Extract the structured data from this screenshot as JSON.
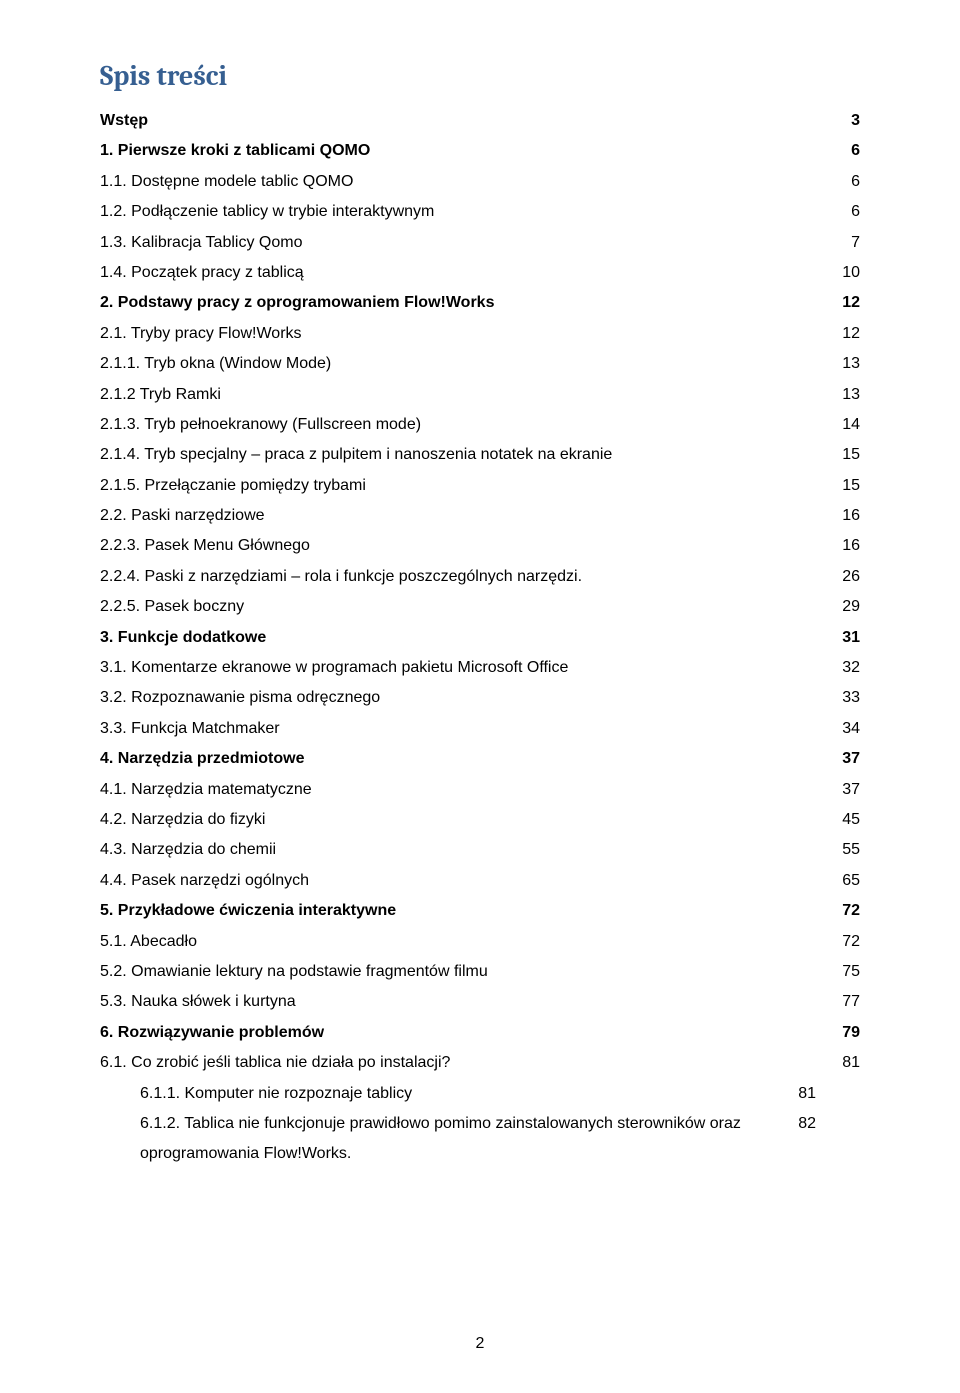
{
  "title": "Spis treści",
  "page_number": "2",
  "colors": {
    "title": "#365f91",
    "text": "#000000",
    "background": "#ffffff"
  },
  "typography": {
    "title_font": "Cambria",
    "body_font": "Arial",
    "title_size_pt": 21,
    "body_size_pt": 12,
    "line_height": 1.9
  },
  "toc": [
    {
      "label": "Wstęp",
      "page": "3",
      "level": "lvl0"
    },
    {
      "label": "1.    Pierwsze kroki z tablicami QOMO",
      "page": "6",
      "level": "lvl1b"
    },
    {
      "label": "1.1.    Dostępne modele tablic QOMO",
      "page": "6",
      "level": "lvl2"
    },
    {
      "label": "1.2.    Podłączenie tablicy w trybie interaktywnym",
      "page": "6",
      "level": "lvl2"
    },
    {
      "label": "1.3.    Kalibracja Tablicy Qomo",
      "page": "7",
      "level": "lvl2"
    },
    {
      "label": "1.4.    Początek pracy z tablicą",
      "page": "10",
      "level": "lvl2"
    },
    {
      "label": "2.    Podstawy pracy z oprogramowaniem Flow!Works",
      "page": "12",
      "level": "lvl1b"
    },
    {
      "label": "2.1.    Tryby pracy Flow!Works",
      "page": "12",
      "level": "lvl2"
    },
    {
      "label": "2.1.1.    Tryb okna (Window Mode)",
      "page": "13",
      "level": "lvl2"
    },
    {
      "label": "2.1.2 Tryb Ramki",
      "page": "13",
      "level": "lvl2"
    },
    {
      "label": "2.1.3.    Tryb pełnoekranowy (Fullscreen mode)",
      "page": "14",
      "level": "lvl2"
    },
    {
      "label": "2.1.4.    Tryb specjalny – praca z pulpitem i nanoszenia notatek na ekranie",
      "page": "15",
      "level": "lvl2"
    },
    {
      "label": "2.1.5.    Przełączanie pomiędzy trybami",
      "page": "15",
      "level": "lvl2"
    },
    {
      "label": "2.2.    Paski narzędziowe",
      "page": "16",
      "level": "lvl2"
    },
    {
      "label": "2.2.3.    Pasek Menu Głównego",
      "page": "16",
      "level": "lvl2"
    },
    {
      "label": "2.2.4.    Paski z narzędziami – rola i funkcje poszczególnych narzędzi.",
      "page": "26",
      "level": "lvl2"
    },
    {
      "label": "2.2.5.    Pasek boczny",
      "page": "29",
      "level": "lvl2"
    },
    {
      "label": "3.    Funkcje dodatkowe",
      "page": "31",
      "level": "lvl1b"
    },
    {
      "label": "3.1.    Komentarze ekranowe w programach pakietu Microsoft Office",
      "page": "32",
      "level": "lvl2"
    },
    {
      "label": "3.2.    Rozpoznawanie pisma odręcznego",
      "page": "33",
      "level": "lvl2"
    },
    {
      "label": "3.3.    Funkcja Matchmaker",
      "page": "34",
      "level": "lvl2"
    },
    {
      "label": "4.    Narzędzia przedmiotowe",
      "page": "37",
      "level": "lvl1b"
    },
    {
      "label": "4.1.    Narzędzia matematyczne",
      "page": "37",
      "level": "lvl2"
    },
    {
      "label": "4.2.    Narzędzia do fizyki",
      "page": "45",
      "level": "lvl2"
    },
    {
      "label": "4.3.    Narzędzia do chemii",
      "page": "55",
      "level": "lvl2"
    },
    {
      "label": "4.4.    Pasek narzędzi ogólnych",
      "page": "65",
      "level": "lvl2"
    },
    {
      "label": "5.    Przykładowe ćwiczenia interaktywne",
      "page": "72",
      "level": "lvl1b"
    },
    {
      "label": "5.1.    Abecadło",
      "page": "72",
      "level": "lvl2"
    },
    {
      "label": "5.2.    Omawianie lektury na podstawie fragmentów filmu",
      "page": "75",
      "level": "lvl2"
    },
    {
      "label": "5.3.    Nauka słówek i kurtyna",
      "page": "77",
      "level": "lvl2"
    },
    {
      "label": "6.    Rozwiązywanie problemów",
      "page": "79",
      "level": "lvl1b"
    },
    {
      "label": "6.1.    Co zrobić jeśli tablica nie działa po instalacji?",
      "page": "81",
      "level": "lvl2"
    },
    {
      "label": "6.1.1. Komputer nie rozpoznaje tablicy",
      "page": "81",
      "level": "lvl3"
    },
    {
      "label": "6.1.2. Tablica nie funkcjonuje prawidłowo pomimo zainstalowanych sterowników oraz oprogramowania Flow!Works.",
      "page": "82",
      "level": "lvl3"
    }
  ]
}
